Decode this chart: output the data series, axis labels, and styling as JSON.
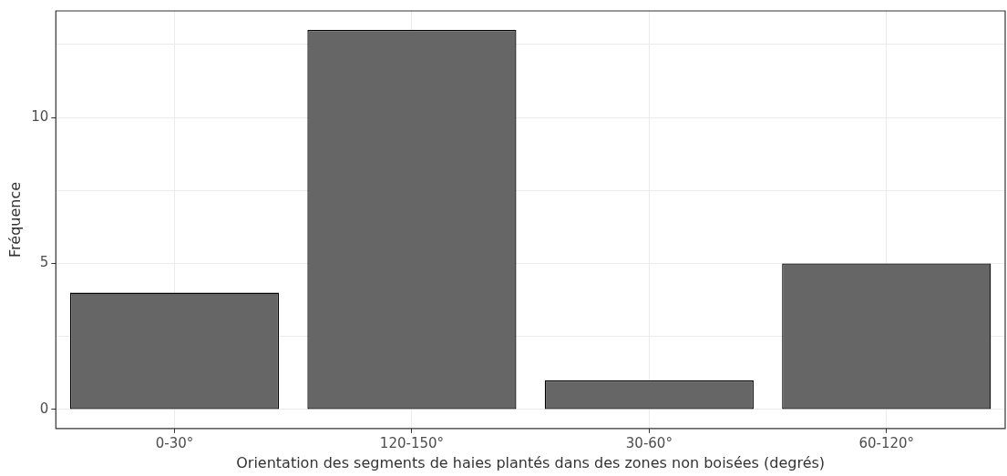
{
  "chart_data": {
    "type": "bar",
    "xlabel": "Orientation des segments de haies plantés dans des zones non boisées (degrés)",
    "ylabel": "Fréquence",
    "categories": [
      "0-30°",
      "120-150°",
      "30-60°",
      "60-120°"
    ],
    "values": [
      4,
      13,
      1,
      5
    ],
    "color": "#666666",
    "ylim": [
      -0.65,
      13.65
    ],
    "yticks": [
      0,
      {
        "value": 2.5,
        "label": null
      },
      5,
      {
        "value": 7.5,
        "label": null
      },
      10,
      {
        "value": 12.5,
        "label": null
      }
    ],
    "grid": true,
    "legend": false
  }
}
